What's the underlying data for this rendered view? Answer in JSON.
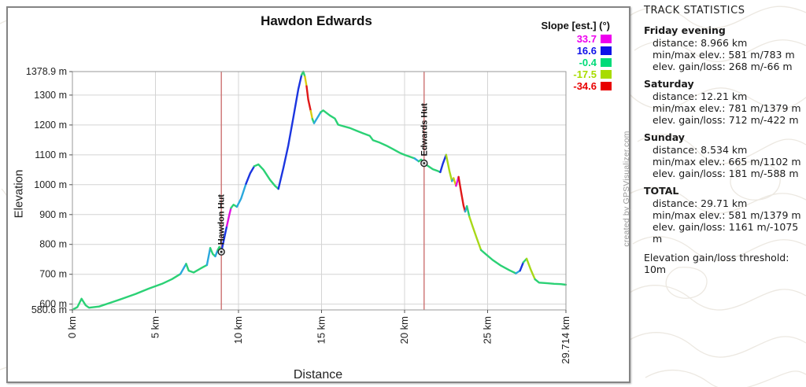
{
  "chart": {
    "panel_border_color": "#858585"
  },
  "chart_data": {
    "type": "line",
    "title": "Hawdon Edwards",
    "xlabel": "Distance",
    "ylabel": "Elevation",
    "x_unit": "km",
    "y_unit": "m",
    "xlim": [
      0,
      29.714
    ],
    "ylim": [
      580.6,
      1378.9
    ],
    "grid": {
      "x_values": [
        5,
        10,
        15,
        20,
        25
      ],
      "y_values": [
        600,
        700,
        800,
        900,
        1000,
        1100,
        1200,
        1300
      ]
    },
    "x_ticks": [
      {
        "value": 0,
        "label": "0 km"
      },
      {
        "value": 5,
        "label": "5 km"
      },
      {
        "value": 10,
        "label": "10 km"
      },
      {
        "value": 15,
        "label": "15 km"
      },
      {
        "value": 20,
        "label": "20 km"
      },
      {
        "value": 25,
        "label": "25 km"
      },
      {
        "value": 29.714,
        "label": "29.714 km"
      }
    ],
    "y_ticks": [
      {
        "value": 1378.9,
        "label": "1378.9 m"
      },
      {
        "value": 1300,
        "label": "1300 m"
      },
      {
        "value": 1200,
        "label": "1200 m"
      },
      {
        "value": 1100,
        "label": "1100 m"
      },
      {
        "value": 1000,
        "label": "1000 m"
      },
      {
        "value": 900,
        "label": "900 m"
      },
      {
        "value": 800,
        "label": "800 m"
      },
      {
        "value": 700,
        "label": "700 m"
      },
      {
        "value": 600,
        "label": "600 m"
      },
      {
        "value": 580.6,
        "label": "580.6 m"
      }
    ],
    "legend": {
      "title": "Slope [est.] (°)",
      "entries": [
        {
          "label": "33.7",
          "color": "#ee00ee"
        },
        {
          "label": "16.6",
          "color": "#0f12e8"
        },
        {
          "label": "-0.4",
          "color": "#00db78"
        },
        {
          "label": "-17.5",
          "color": "#a8dc00"
        },
        {
          "label": "-34.6",
          "color": "#e80000"
        }
      ]
    },
    "slope_palette": {
      "g": "#2bd175",
      "c": "#2aa8dd",
      "b": "#1b35e0",
      "m": "#e012e0",
      "yg": "#a8d818",
      "y": "#d8cc10",
      "r": "#e01818"
    },
    "waypoint_line_color": "#cc7272",
    "grid_color": "#d4d4d4",
    "frame_color": "#999999",
    "points": [
      [
        0,
        581,
        "g"
      ],
      [
        0.3,
        590,
        "g"
      ],
      [
        0.55,
        618,
        "g"
      ],
      [
        0.8,
        596,
        "g"
      ],
      [
        1.0,
        588,
        "g"
      ],
      [
        1.6,
        592,
        "g"
      ],
      [
        2.2,
        603,
        "g"
      ],
      [
        3.0,
        618,
        "g"
      ],
      [
        3.8,
        634,
        "g"
      ],
      [
        4.6,
        652,
        "g"
      ],
      [
        5.4,
        668,
        "g"
      ],
      [
        6.0,
        684,
        "g"
      ],
      [
        6.5,
        701,
        "g"
      ],
      [
        6.85,
        735,
        "c"
      ],
      [
        7.0,
        712,
        "g"
      ],
      [
        7.3,
        706,
        "g"
      ],
      [
        7.8,
        722,
        "g"
      ],
      [
        8.1,
        731,
        "g"
      ],
      [
        8.3,
        788,
        "c"
      ],
      [
        8.45,
        768,
        "g"
      ],
      [
        8.6,
        760,
        "g"
      ],
      [
        8.75,
        781,
        "c"
      ],
      [
        8.85,
        792,
        "g"
      ],
      [
        8.966,
        775,
        "g"
      ],
      [
        9.1,
        810,
        "b"
      ],
      [
        9.3,
        862,
        "b"
      ],
      [
        9.45,
        900,
        "m"
      ],
      [
        9.55,
        922,
        "m"
      ],
      [
        9.7,
        933,
        "g"
      ],
      [
        9.9,
        926,
        "g"
      ],
      [
        10.15,
        953,
        "c"
      ],
      [
        10.45,
        1003,
        "c"
      ],
      [
        10.7,
        1038,
        "b"
      ],
      [
        10.95,
        1062,
        "b"
      ],
      [
        11.2,
        1068,
        "g"
      ],
      [
        11.5,
        1050,
        "g"
      ],
      [
        11.9,
        1016,
        "g"
      ],
      [
        12.2,
        996,
        "g"
      ],
      [
        12.4,
        986,
        "g"
      ],
      [
        12.7,
        1056,
        "b"
      ],
      [
        13.0,
        1132,
        "b"
      ],
      [
        13.3,
        1224,
        "b"
      ],
      [
        13.6,
        1320,
        "b"
      ],
      [
        13.8,
        1368,
        "b"
      ],
      [
        13.9,
        1378.9,
        "g"
      ],
      [
        14.0,
        1362,
        "g"
      ],
      [
        14.1,
        1330,
        "y"
      ],
      [
        14.2,
        1285,
        "r"
      ],
      [
        14.35,
        1247,
        "r"
      ],
      [
        14.45,
        1220,
        "y"
      ],
      [
        14.55,
        1206,
        "g"
      ],
      [
        14.75,
        1224,
        "c"
      ],
      [
        14.95,
        1243,
        "c"
      ],
      [
        15.1,
        1249,
        "g"
      ],
      [
        15.5,
        1232,
        "g"
      ],
      [
        15.8,
        1222,
        "g"
      ],
      [
        16.0,
        1201,
        "g"
      ],
      [
        16.3,
        1196,
        "g"
      ],
      [
        16.7,
        1190,
        "g"
      ],
      [
        17.1,
        1181,
        "g"
      ],
      [
        17.5,
        1172,
        "g"
      ],
      [
        17.9,
        1164,
        "g"
      ],
      [
        18.1,
        1149,
        "g"
      ],
      [
        18.5,
        1141,
        "g"
      ],
      [
        18.9,
        1131,
        "g"
      ],
      [
        19.3,
        1119,
        "g"
      ],
      [
        19.7,
        1107,
        "g"
      ],
      [
        20.0,
        1100,
        "g"
      ],
      [
        20.3,
        1094,
        "g"
      ],
      [
        20.6,
        1088,
        "g"
      ],
      [
        20.85,
        1078,
        "c"
      ],
      [
        21.0,
        1084,
        "g"
      ],
      [
        21.176,
        1072,
        "g"
      ],
      [
        21.4,
        1063,
        "g"
      ],
      [
        21.7,
        1052,
        "g"
      ],
      [
        22.0,
        1046,
        "g"
      ],
      [
        22.15,
        1042,
        "g"
      ],
      [
        22.3,
        1070,
        "b"
      ],
      [
        22.5,
        1100,
        "b"
      ],
      [
        22.7,
        1046,
        "yg"
      ],
      [
        22.85,
        1012,
        "yg"
      ],
      [
        22.95,
        1022,
        "c"
      ],
      [
        23.1,
        996,
        "y"
      ],
      [
        23.25,
        1026,
        "m"
      ],
      [
        23.4,
        976,
        "r"
      ],
      [
        23.55,
        930,
        "r"
      ],
      [
        23.65,
        910,
        "r"
      ],
      [
        23.75,
        928,
        "c"
      ],
      [
        23.9,
        893,
        "g"
      ],
      [
        24.1,
        860,
        "yg"
      ],
      [
        24.35,
        820,
        "yg"
      ],
      [
        24.6,
        781,
        "yg"
      ],
      [
        24.9,
        767,
        "g"
      ],
      [
        25.3,
        748,
        "g"
      ],
      [
        25.8,
        729,
        "g"
      ],
      [
        26.3,
        714,
        "g"
      ],
      [
        26.7,
        703,
        "g"
      ],
      [
        26.95,
        712,
        "c"
      ],
      [
        27.15,
        740,
        "b"
      ],
      [
        27.35,
        752,
        "g"
      ],
      [
        27.6,
        715,
        "yg"
      ],
      [
        27.85,
        683,
        "yg"
      ],
      [
        28.1,
        672,
        "g"
      ],
      [
        28.6,
        670,
        "g"
      ],
      [
        29.0,
        668,
        "g"
      ],
      [
        29.4,
        667,
        "g"
      ],
      [
        29.714,
        665,
        "g"
      ]
    ],
    "waypoints": [
      {
        "name": "Hawdon Hut",
        "km": 8.966,
        "elev": 775
      },
      {
        "name": "Edwards Hut",
        "km": 21.176,
        "elev": 1072
      }
    ],
    "credit": "created by GPSVisualizer.com"
  },
  "stats": {
    "title": "TRACK STATISTICS",
    "sections": [
      {
        "name": "Friday evening",
        "lines": [
          "distance: 8.966 km",
          "min/max elev.: 581 m/783 m",
          "elev. gain/loss: 268 m/-66 m"
        ]
      },
      {
        "name": "Saturday",
        "lines": [
          "distance: 12.21 km",
          "min/max elev.: 781 m/1379 m",
          "elev. gain/loss: 712 m/-422 m"
        ]
      },
      {
        "name": "Sunday",
        "lines": [
          "distance: 8.534 km",
          "min/max elev.: 665 m/1102 m",
          "elev. gain/loss: 181 m/-588 m"
        ]
      },
      {
        "name": "TOTAL",
        "lines": [
          "distance: 29.71 km",
          "min/max elev.: 581 m/1379 m",
          "elev. gain/loss: 1161 m/-1075 m"
        ]
      }
    ],
    "footer": "Elevation gain/loss threshold: 10m"
  }
}
